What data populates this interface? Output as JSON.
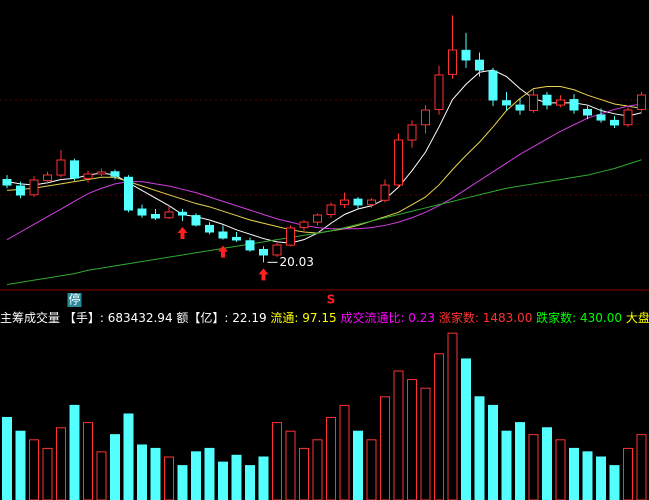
{
  "chart_data": [
    {
      "type": "candlestick",
      "open": [
        27.6,
        27.0,
        26.2,
        27.5,
        28.0,
        29.3,
        27.7,
        28.1,
        28.3,
        27.8,
        24.9,
        24.4,
        24.1,
        24.6,
        24.3,
        23.4,
        22.8,
        22.3,
        22.0,
        21.2,
        20.7,
        21.6,
        23.2,
        23.7,
        24.4,
        25.3,
        25.8,
        25.3,
        25.7,
        27.1,
        31.2,
        32.6,
        34.0,
        37.2,
        39.4,
        38.5,
        37.5,
        34.8,
        34.4,
        33.9,
        35.3,
        34.4,
        34.9,
        34.0,
        33.5,
        33.0,
        32.6,
        34.0
      ],
      "high": [
        28.0,
        27.4,
        27.9,
        28.3,
        30.3,
        29.5,
        28.4,
        28.6,
        28.5,
        28.0,
        25.3,
        24.9,
        25.2,
        24.9,
        24.5,
        23.7,
        23.4,
        22.8,
        22.3,
        21.5,
        21.8,
        23.4,
        23.9,
        24.5,
        25.5,
        26.4,
        26.0,
        25.9,
        27.6,
        31.8,
        33.0,
        34.4,
        38.0,
        42.6,
        41.0,
        39.2,
        37.8,
        35.6,
        35.0,
        35.8,
        35.6,
        35.3,
        35.4,
        34.3,
        34.1,
        33.4,
        34.2,
        35.6
      ],
      "low": [
        26.8,
        25.9,
        26.0,
        27.2,
        27.8,
        27.5,
        27.3,
        27.9,
        27.6,
        24.6,
        24.1,
        23.9,
        24.0,
        23.8,
        23.3,
        22.6,
        22.1,
        21.9,
        21.0,
        20.03,
        20.5,
        21.5,
        22.9,
        23.4,
        24.1,
        25.0,
        24.9,
        25.0,
        25.5,
        26.9,
        30.5,
        31.8,
        33.5,
        36.8,
        37.8,
        37.0,
        34.3,
        33.9,
        33.5,
        33.7,
        34.0,
        34.2,
        33.6,
        33.1,
        32.8,
        32.3,
        32.4,
        33.8
      ],
      "close": [
        27.09,
        26.18,
        27.55,
        28.01,
        29.38,
        27.73,
        28.1,
        28.28,
        27.9,
        24.81,
        24.35,
        24.08,
        24.63,
        24.35,
        23.44,
        22.8,
        22.25,
        22.07,
        21.16,
        20.7,
        21.61,
        23.17,
        23.71,
        24.35,
        25.27,
        25.72,
        25.27,
        25.72,
        27.09,
        31.21,
        32.58,
        33.95,
        37.15,
        39.43,
        38.52,
        37.6,
        34.86,
        34.41,
        33.95,
        35.32,
        34.41,
        34.86,
        33.95,
        33.49,
        33.03,
        32.58,
        33.95,
        35.32
      ],
      "up_color": "#ff3232",
      "down_color": "#54ffff",
      "ylim": [
        17.5,
        44
      ],
      "ma": [
        {
          "color": "#ffffff",
          "values": [
            27.4,
            27.2,
            27.1,
            27.3,
            27.6,
            27.7,
            28.0,
            28.2,
            28.0,
            27.3,
            26.6,
            25.9,
            25.2,
            24.4,
            24.2,
            23.9,
            23.5,
            23.0,
            22.6,
            22.2,
            21.9,
            21.8,
            22.1,
            22.7,
            23.6,
            24.4,
            24.9,
            25.2,
            25.8,
            26.9,
            28.4,
            30.1,
            32.4,
            34.9,
            36.3,
            37.4,
            37.6,
            37.0,
            35.9,
            35.0,
            34.6,
            34.6,
            34.6,
            34.4,
            33.9,
            33.6,
            33.4,
            33.7
          ]
        },
        {
          "color": "#e8d44d",
          "values": [
            26.6,
            26.7,
            26.8,
            27.0,
            27.2,
            27.4,
            27.6,
            27.8,
            27.8,
            27.4,
            27.0,
            26.6,
            26.2,
            25.8,
            25.4,
            25.1,
            24.7,
            24.3,
            23.9,
            23.6,
            23.3,
            23.0,
            22.8,
            22.7,
            22.9,
            23.1,
            23.4,
            23.8,
            24.2,
            24.6,
            25.3,
            26.0,
            27.1,
            28.5,
            29.8,
            31.0,
            32.4,
            33.9,
            35.0,
            35.9,
            36.1,
            36.1,
            35.8,
            35.3,
            34.9,
            34.5,
            34.3,
            34.1
          ]
        },
        {
          "color": "#d040e0",
          "values": [
            22.1,
            22.8,
            23.5,
            24.2,
            24.9,
            25.6,
            26.3,
            26.8,
            27.2,
            27.4,
            27.4,
            27.2,
            27.0,
            26.7,
            26.4,
            26.0,
            25.6,
            25.2,
            24.8,
            24.4,
            24.0,
            23.7,
            23.4,
            23.2,
            23.1,
            23.1,
            23.1,
            23.2,
            23.4,
            23.7,
            24.1,
            24.6,
            25.2,
            25.9,
            26.7,
            27.5,
            28.3,
            29.1,
            29.9,
            30.6,
            31.3,
            32.0,
            32.6,
            33.2,
            33.6,
            34.0,
            34.3,
            34.5
          ]
        },
        {
          "color": "#2faa2f",
          "values": [
            18.0,
            18.2,
            18.4,
            18.6,
            18.8,
            19.0,
            19.3,
            19.5,
            19.7,
            19.9,
            20.1,
            20.3,
            20.5,
            20.7,
            20.9,
            21.1,
            21.3,
            21.5,
            21.7,
            21.9,
            22.1,
            22.3,
            22.5,
            22.7,
            22.9,
            23.2,
            23.5,
            23.8,
            24.1,
            24.4,
            24.7,
            25.0,
            25.3,
            25.6,
            25.9,
            26.2,
            26.5,
            26.8,
            27.0,
            27.2,
            27.4,
            27.6,
            27.8,
            28.0,
            28.3,
            28.6,
            29.0,
            29.4
          ]
        }
      ],
      "buy_signals": [
        13,
        16,
        19
      ],
      "low_label_index": 19,
      "stop_marker": {
        "text": "停",
        "index": 5
      },
      "sell_marker": {
        "text": "S",
        "index": 24
      }
    },
    {
      "type": "volume",
      "title_parts": [
        {
          "text": "主筹成交量",
          "color": "#ffffff"
        },
        {
          "text": " 【手】: 683432.94 额【亿】: 22.19 ",
          "color": "#ffffff"
        },
        {
          "text": "流通: 97.15 ",
          "color": "#ffff00"
        },
        {
          "text": "成交流通比: 0.23 ",
          "color": "#ff00ff"
        },
        {
          "text": "涨家数: 1483.00 ",
          "color": "#ff3232"
        },
        {
          "text": "跌家数: 430.00 ",
          "color": "#00ff00"
        },
        {
          "text": "大盘成交额",
          "color": "#ffff00"
        }
      ],
      "values": [
        48,
        40,
        35,
        30,
        42,
        55,
        45,
        28,
        38,
        50,
        32,
        30,
        25,
        20,
        28,
        30,
        22,
        26,
        20,
        25,
        45,
        40,
        30,
        35,
        48,
        55,
        40,
        35,
        60,
        75,
        70,
        65,
        85,
        97,
        82,
        60,
        55,
        40,
        45,
        38,
        42,
        35,
        30,
        28,
        25,
        20,
        30,
        38
      ],
      "ylim": [
        0,
        100
      ]
    }
  ]
}
